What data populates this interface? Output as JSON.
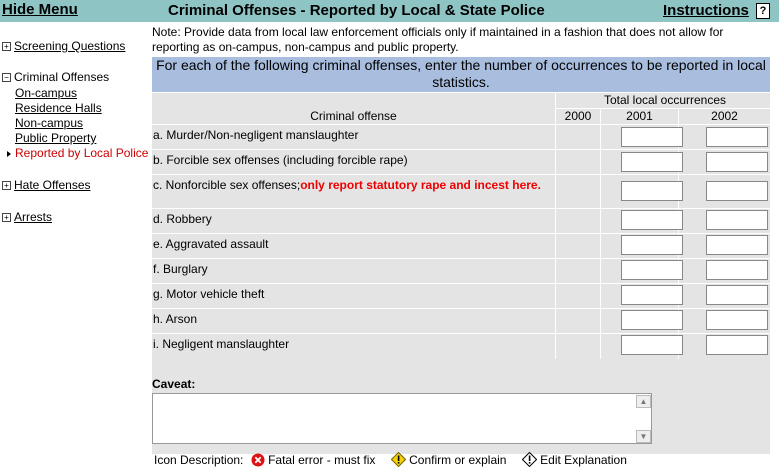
{
  "header": {
    "hide_menu": "Hide Menu",
    "title": "Criminal Offenses - Reported by Local & State Police",
    "instructions": "Instructions",
    "help_glyph": "?"
  },
  "sidebar": {
    "screening": "Screening Questions",
    "criminal_offenses": "Criminal Offenses",
    "sub_items": [
      "On-campus",
      "Residence Halls",
      "Non-campus",
      "Public Property"
    ],
    "active_item": "Reported by Local Police",
    "hate_offenses": "Hate Offenses",
    "arrests": "Arrests",
    "expand_glyph": "+",
    "collapse_glyph": "−"
  },
  "note": "Note: Provide data from local law enforcement officials only if maintained in a fashion that does not allow for reporting as on-campus, non-campus and public property.",
  "instruction_banner": "For each of the following criminal offenses, enter the number of occurrences to be reported in local statistics.",
  "table": {
    "group_header": "Total local occurrences",
    "col_offense": "Criminal offense",
    "years": [
      "2000",
      "2001",
      "2002"
    ],
    "rows": [
      {
        "label": "a. Murder/Non-negligent manslaughter"
      },
      {
        "label": "b. Forcible sex offenses (including forcible rape)"
      },
      {
        "label": "c. Nonforcible sex offenses;",
        "warning": "only report statutory rape and incest here."
      },
      {
        "label": "d. Robbery"
      },
      {
        "label": "e. Aggravated assault"
      },
      {
        "label": "f. Burglary"
      },
      {
        "label": "g. Motor vehicle theft"
      },
      {
        "label": "h. Arson"
      },
      {
        "label": "i. Negligent manslaughter"
      }
    ]
  },
  "caveat": {
    "label": "Caveat:"
  },
  "legend": {
    "prefix": "Icon Description:",
    "fatal": "Fatal error - must fix",
    "confirm": "Confirm or explain",
    "edit": "Edit Explanation"
  }
}
